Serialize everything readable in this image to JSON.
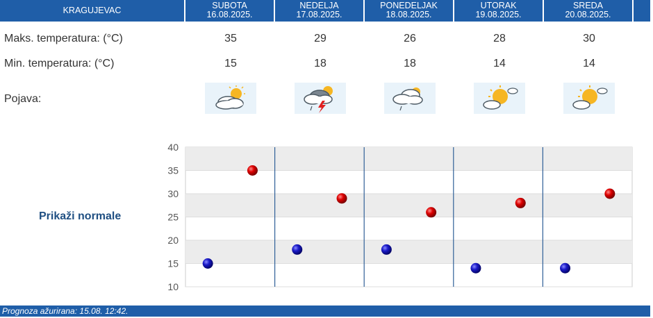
{
  "header": {
    "city": "KRAGUJEVAC",
    "days": [
      {
        "name": "SUBOTA",
        "date": "16.08.2025."
      },
      {
        "name": "NEDELJA",
        "date": "17.08.2025."
      },
      {
        "name": "PONEDELJAK",
        "date": "18.08.2025."
      },
      {
        "name": "UTORAK",
        "date": "19.08.2025."
      },
      {
        "name": "SREDA",
        "date": "20.08.2025."
      }
    ]
  },
  "rows": {
    "max_label": "Maks. temperatura: (°C)",
    "min_label": "Min. temperatura: (°C)",
    "phenomenon_label": "Pojava:",
    "max": [
      "35",
      "29",
      "26",
      "28",
      "30"
    ],
    "min": [
      "15",
      "18",
      "18",
      "14",
      "14"
    ]
  },
  "icons": [
    "partly-cloudy-icon",
    "thunderstorm-icon",
    "cloudy-shower-icon",
    "mostly-sunny-icon",
    "mostly-sunny-icon"
  ],
  "normals_link": "Prikaži normale",
  "footer": "Prognoza ažurirana:  15.08. 12:42.",
  "colors": {
    "header": "#1f5ea8",
    "max_dot": "#cc0000",
    "min_dot": "#1010aa"
  },
  "chart_data": {
    "type": "scatter",
    "y_ticks": [
      "40",
      "35",
      "30",
      "25",
      "20",
      "15",
      "10"
    ],
    "ylim": [
      10,
      40
    ],
    "categories": [
      "SUBOTA",
      "NEDELJA",
      "PONEDELJAK",
      "UTORAK",
      "SREDA"
    ],
    "series": [
      {
        "values": [
          15,
          18,
          18,
          14,
          14
        ]
      },
      {
        "values": [
          35,
          29,
          26,
          28,
          30
        ]
      }
    ],
    "grid": "horizontal bands"
  }
}
